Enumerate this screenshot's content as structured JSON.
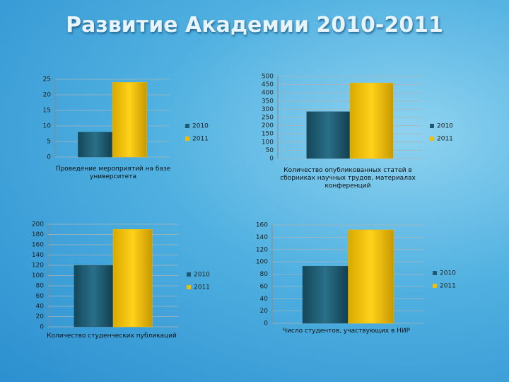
{
  "title": "Развитие Академии 2010-2011",
  "chart_data": [
    {
      "type": "bar",
      "categories": [
        "Проведение мероприятий на базе университета"
      ],
      "series": [
        {
          "name": "2010",
          "color": "#1f5a70",
          "values": [
            8
          ]
        },
        {
          "name": "2011",
          "color": "#f0c000",
          "values": [
            24
          ]
        }
      ],
      "ylim": [
        0,
        25
      ],
      "yticks": [
        0,
        5,
        10,
        15,
        20,
        25
      ],
      "grid": true,
      "legend": "right"
    },
    {
      "type": "bar",
      "categories": [
        "Количество опубликованных статей в сборниках научных трудов, материалах конференций"
      ],
      "series": [
        {
          "name": "2010",
          "color": "#1f5a70",
          "values": [
            285
          ]
        },
        {
          "name": "2011",
          "color": "#f0c000",
          "values": [
            460
          ]
        }
      ],
      "ylim": [
        0,
        500
      ],
      "yticks": [
        0,
        50,
        100,
        150,
        200,
        250,
        300,
        350,
        400,
        450,
        500
      ],
      "grid": true,
      "legend": "right"
    },
    {
      "type": "bar",
      "categories": [
        "Количество студенческих публикаций"
      ],
      "series": [
        {
          "name": "2010",
          "color": "#1f5a70",
          "values": [
            120
          ]
        },
        {
          "name": "2011",
          "color": "#f0c000",
          "values": [
            190
          ]
        }
      ],
      "ylim": [
        0,
        200
      ],
      "yticks": [
        0,
        20,
        40,
        60,
        80,
        100,
        120,
        140,
        160,
        180,
        200
      ],
      "grid": true,
      "legend": "right"
    },
    {
      "type": "bar",
      "categories": [
        "Число студентов, участвующих в НИР"
      ],
      "series": [
        {
          "name": "2010",
          "color": "#1f5a70",
          "values": [
            93
          ]
        },
        {
          "name": "2011",
          "color": "#f0c000",
          "values": [
            152
          ]
        }
      ],
      "ylim": [
        0,
        160
      ],
      "yticks": [
        0,
        20,
        40,
        60,
        80,
        100,
        120,
        140,
        160
      ],
      "grid": true,
      "legend": "right"
    }
  ]
}
